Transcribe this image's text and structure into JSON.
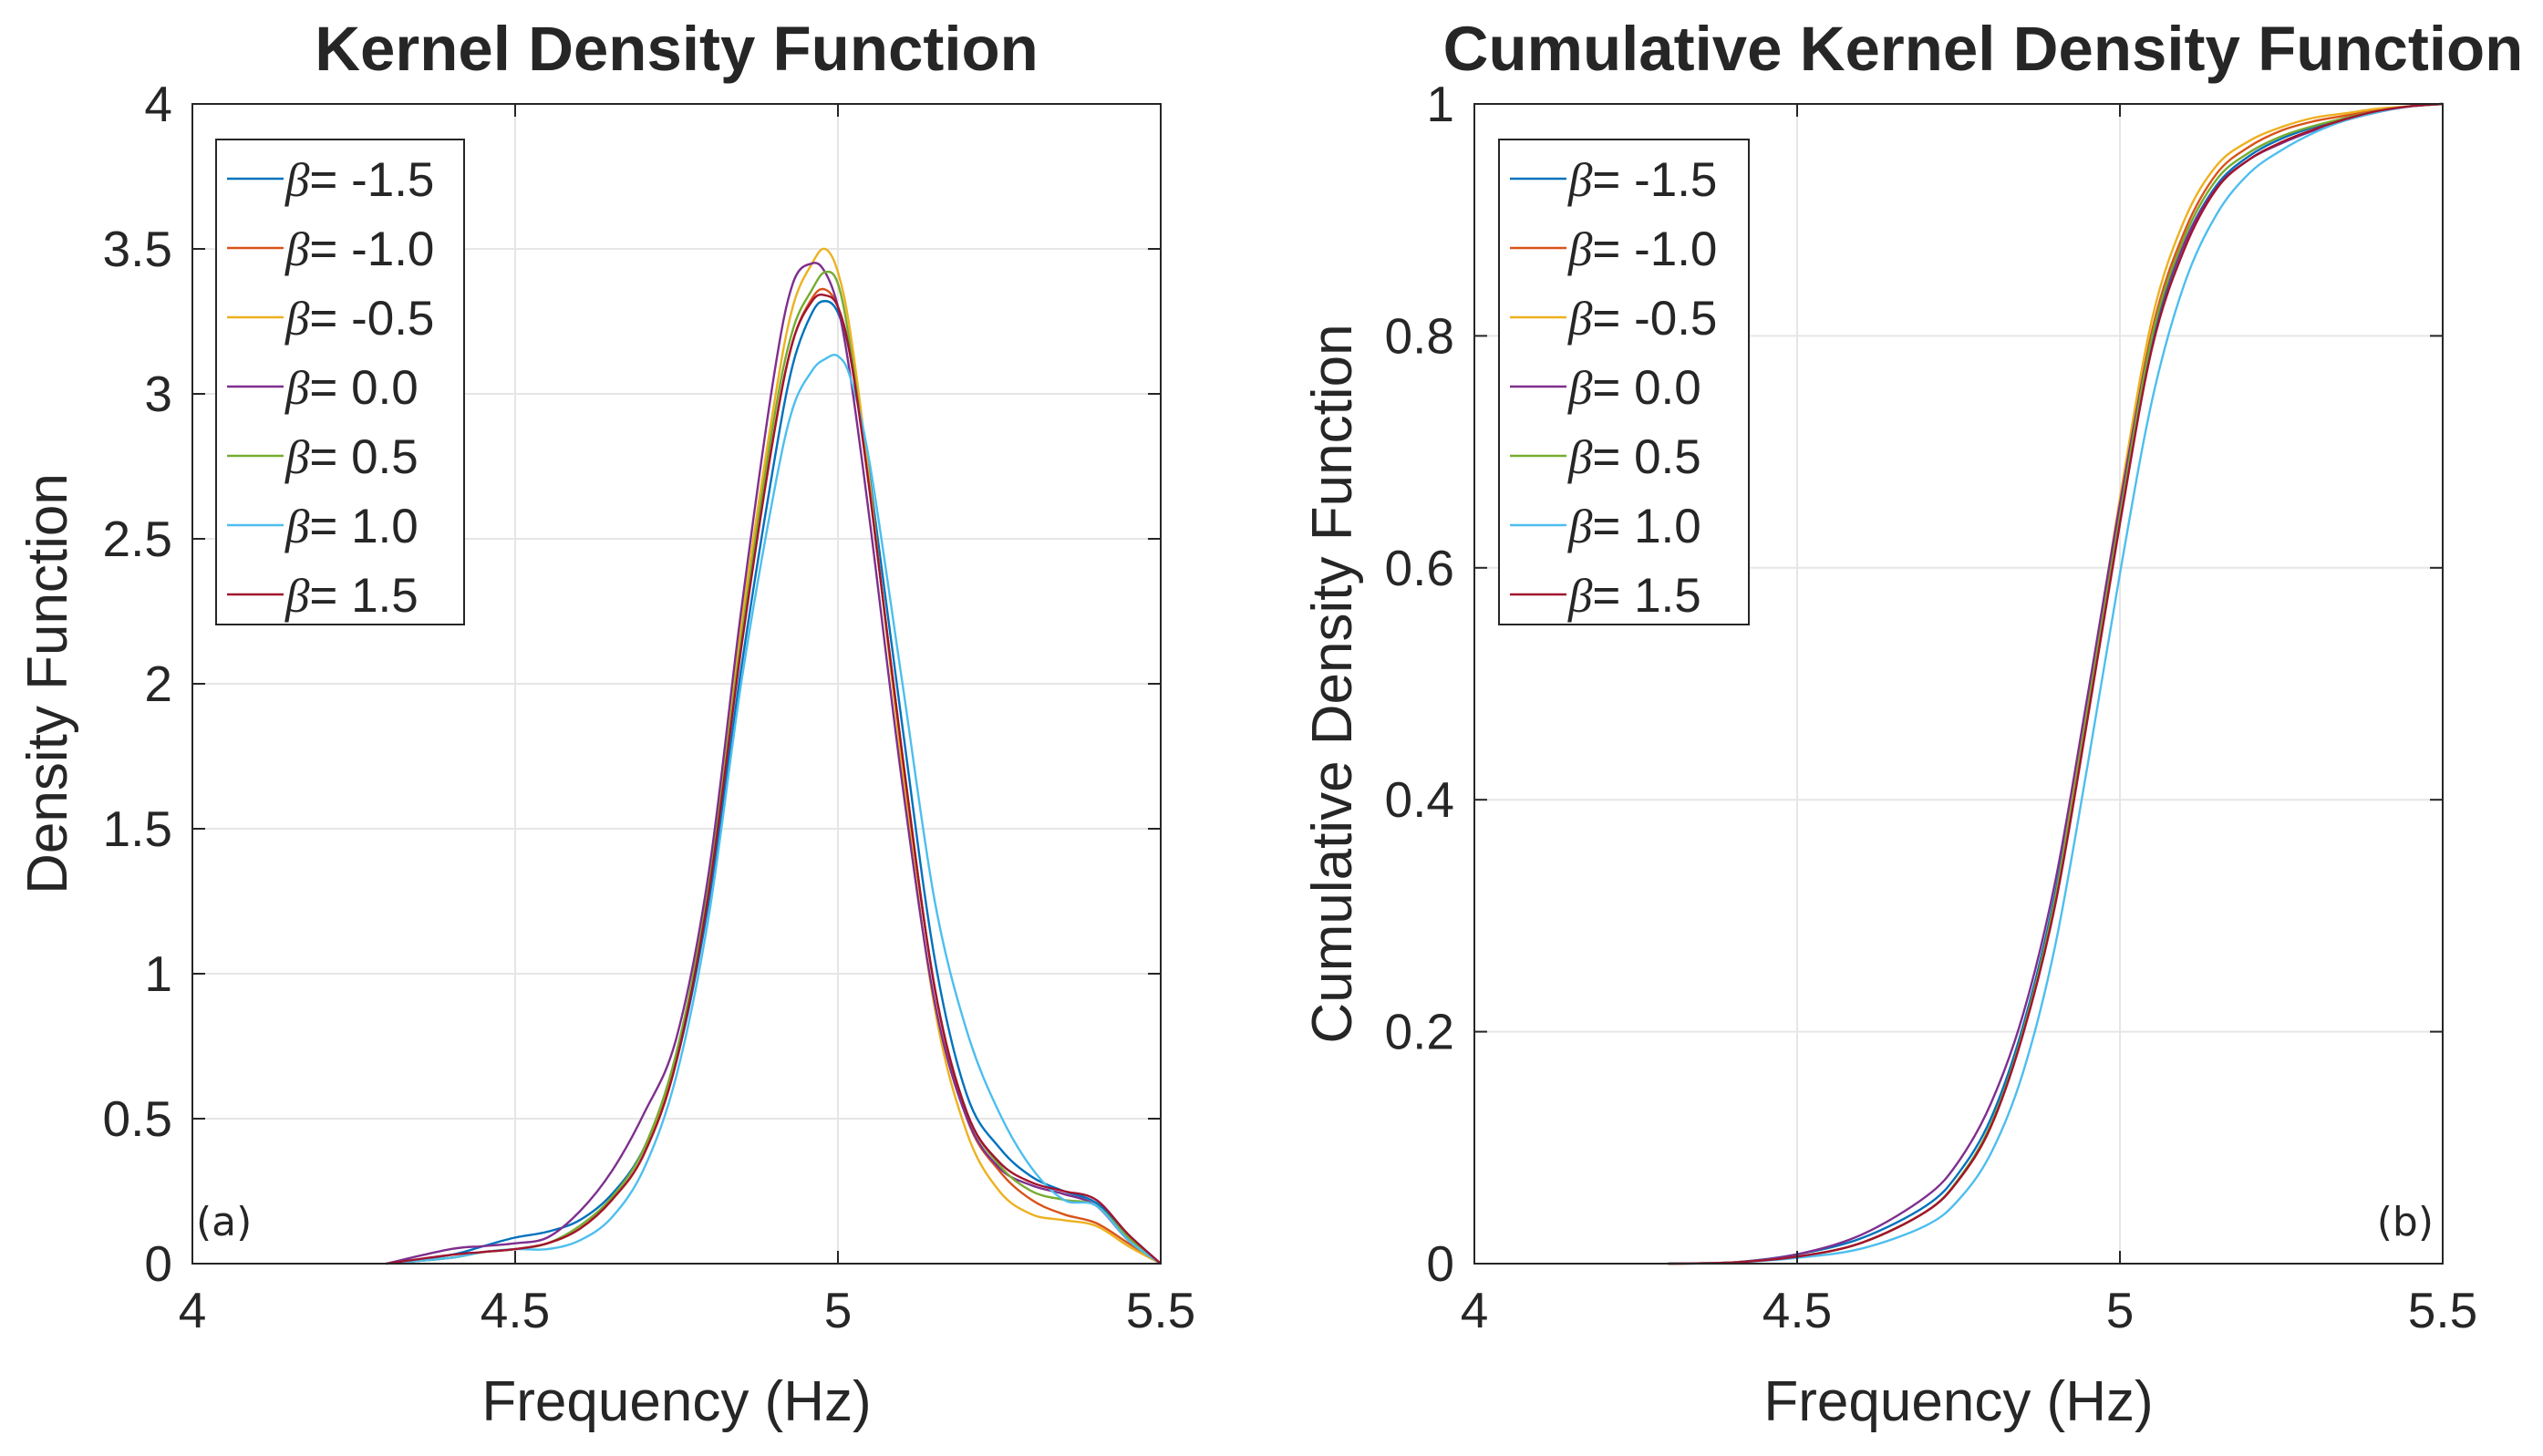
{
  "chart_data": [
    {
      "type": "line",
      "title": "Kernel Density Function",
      "xlabel": "Frequency (Hz)",
      "ylabel": "Density Function",
      "xlim": [
        4,
        5.5
      ],
      "ylim": [
        0,
        4
      ],
      "xticks": [
        4,
        4.5,
        5,
        5.5
      ],
      "xtick_labels": [
        "4",
        "4.5",
        "5",
        "5.5"
      ],
      "yticks": [
        0,
        0.5,
        1,
        1.5,
        2,
        2.5,
        3,
        3.5,
        4
      ],
      "ytick_labels": [
        "0",
        "0.5",
        "1",
        "1.5",
        "2",
        "2.5",
        "3",
        "3.5",
        "4"
      ],
      "grid": true,
      "legend_position": "top-left",
      "panel_label": "(a)",
      "panel_label_position": "bottom-left",
      "series": [
        {
          "name": "β= -1.5",
          "symbol": "β",
          "label": "= -1.5",
          "color": "#0072BD",
          "x": [
            4.3,
            4.4,
            4.45,
            4.5,
            4.55,
            4.6,
            4.65,
            4.7,
            4.75,
            4.8,
            4.85,
            4.9,
            4.93,
            4.96,
            4.98,
            5.0,
            5.02,
            5.05,
            5.1,
            5.15,
            5.2,
            5.25,
            5.3,
            5.35,
            5.4,
            5.45,
            5.5
          ],
          "y": [
            0,
            0.03,
            0.06,
            0.09,
            0.11,
            0.15,
            0.24,
            0.4,
            0.7,
            1.25,
            2.05,
            2.75,
            3.1,
            3.28,
            3.32,
            3.28,
            3.12,
            2.7,
            1.85,
            1.05,
            0.58,
            0.4,
            0.3,
            0.25,
            0.21,
            0.1,
            0
          ]
        },
        {
          "name": "β= -1.0",
          "symbol": "β",
          "label": "= -1.0",
          "color": "#D95319",
          "x": [
            4.3,
            4.4,
            4.45,
            4.5,
            4.55,
            4.6,
            4.65,
            4.7,
            4.75,
            4.8,
            4.85,
            4.9,
            4.93,
            4.96,
            4.98,
            5.0,
            5.02,
            5.05,
            5.1,
            5.15,
            5.2,
            5.25,
            5.3,
            5.35,
            5.4,
            5.45,
            5.5
          ],
          "y": [
            0,
            0.02,
            0.04,
            0.05,
            0.07,
            0.12,
            0.22,
            0.38,
            0.7,
            1.3,
            2.15,
            2.85,
            3.18,
            3.33,
            3.36,
            3.3,
            3.12,
            2.65,
            1.75,
            0.95,
            0.5,
            0.32,
            0.22,
            0.17,
            0.14,
            0.07,
            0
          ]
        },
        {
          "name": "β= -0.5",
          "symbol": "β",
          "label": "= -0.5",
          "color": "#EDB120",
          "x": [
            4.3,
            4.4,
            4.45,
            4.5,
            4.55,
            4.6,
            4.65,
            4.7,
            4.75,
            4.8,
            4.85,
            4.9,
            4.93,
            4.96,
            4.98,
            5.0,
            5.02,
            5.05,
            5.1,
            5.15,
            5.2,
            5.25,
            5.3,
            5.35,
            5.4,
            5.45,
            5.5
          ],
          "y": [
            0,
            0.02,
            0.04,
            0.05,
            0.07,
            0.12,
            0.22,
            0.38,
            0.72,
            1.32,
            2.2,
            2.95,
            3.3,
            3.45,
            3.5,
            3.42,
            3.2,
            2.68,
            1.7,
            0.88,
            0.45,
            0.25,
            0.17,
            0.15,
            0.13,
            0.06,
            0
          ]
        },
        {
          "name": "β= 0.0",
          "symbol": "β",
          "label": "= 0.0",
          "color": "#7E2F8E",
          "x": [
            4.3,
            4.4,
            4.45,
            4.5,
            4.55,
            4.6,
            4.65,
            4.7,
            4.75,
            4.8,
            4.85,
            4.9,
            4.93,
            4.96,
            4.98,
            5.0,
            5.02,
            5.05,
            5.1,
            5.15,
            5.2,
            5.25,
            5.3,
            5.35,
            5.4,
            5.45,
            5.5
          ],
          "y": [
            0,
            0.05,
            0.06,
            0.07,
            0.09,
            0.18,
            0.32,
            0.52,
            0.78,
            1.35,
            2.25,
            3.05,
            3.38,
            3.45,
            3.42,
            3.3,
            3.05,
            2.55,
            1.65,
            0.9,
            0.5,
            0.33,
            0.27,
            0.24,
            0.2,
            0.08,
            0
          ]
        },
        {
          "name": "β= 0.5",
          "symbol": "β",
          "label": "= 0.5",
          "color": "#77AC30",
          "x": [
            4.3,
            4.4,
            4.45,
            4.5,
            4.55,
            4.6,
            4.65,
            4.7,
            4.75,
            4.8,
            4.85,
            4.9,
            4.93,
            4.96,
            4.98,
            5.0,
            5.02,
            5.05,
            5.1,
            5.15,
            5.2,
            5.25,
            5.3,
            5.35,
            5.4,
            5.45,
            5.5
          ],
          "y": [
            0,
            0.02,
            0.04,
            0.05,
            0.07,
            0.13,
            0.23,
            0.4,
            0.73,
            1.3,
            2.15,
            2.9,
            3.22,
            3.36,
            3.42,
            3.38,
            3.15,
            2.65,
            1.75,
            0.95,
            0.52,
            0.34,
            0.25,
            0.22,
            0.2,
            0.09,
            0
          ]
        },
        {
          "name": "β= 1.0",
          "symbol": "β",
          "label": "= 1.0",
          "color": "#4DBEEE",
          "x": [
            4.3,
            4.4,
            4.45,
            4.5,
            4.55,
            4.6,
            4.65,
            4.7,
            4.75,
            4.8,
            4.85,
            4.9,
            4.93,
            4.96,
            4.98,
            5.0,
            5.02,
            5.05,
            5.1,
            5.15,
            5.2,
            5.25,
            5.3,
            5.35,
            5.4,
            5.45,
            5.5
          ],
          "y": [
            0,
            0.02,
            0.04,
            0.05,
            0.05,
            0.08,
            0.16,
            0.33,
            0.65,
            1.2,
            2.0,
            2.65,
            2.95,
            3.08,
            3.12,
            3.13,
            3.05,
            2.75,
            2.0,
            1.25,
            0.8,
            0.52,
            0.33,
            0.22,
            0.2,
            0.08,
            0
          ]
        },
        {
          "name": "β= 1.5",
          "symbol": "β",
          "label": "= 1.5",
          "color": "#A2142F",
          "x": [
            4.3,
            4.4,
            4.45,
            4.5,
            4.55,
            4.6,
            4.65,
            4.7,
            4.75,
            4.8,
            4.85,
            4.9,
            4.93,
            4.96,
            4.98,
            5.0,
            5.02,
            5.05,
            5.1,
            5.15,
            5.2,
            5.25,
            5.3,
            5.35,
            5.4,
            5.45,
            5.5
          ],
          "y": [
            0,
            0.03,
            0.04,
            0.05,
            0.07,
            0.12,
            0.22,
            0.38,
            0.7,
            1.28,
            2.12,
            2.85,
            3.18,
            3.32,
            3.34,
            3.3,
            3.12,
            2.65,
            1.75,
            0.95,
            0.52,
            0.35,
            0.28,
            0.25,
            0.22,
            0.1,
            0
          ]
        }
      ]
    },
    {
      "type": "line",
      "title": "Cumulative Kernel Density Function",
      "xlabel": "Frequency (Hz)",
      "ylabel": "Cumulative Density Function",
      "xlim": [
        4,
        5.5
      ],
      "ylim": [
        0,
        1
      ],
      "xticks": [
        4,
        4.5,
        5,
        5.5
      ],
      "xtick_labels": [
        "4",
        "4.5",
        "5",
        "5.5"
      ],
      "yticks": [
        0,
        0.2,
        0.4,
        0.6,
        0.8,
        1
      ],
      "ytick_labels": [
        "0",
        "0.2",
        "0.4",
        "0.6",
        "0.8",
        "1"
      ],
      "grid": true,
      "legend_position": "top-left",
      "panel_label": "(b)",
      "panel_label_position": "bottom-right",
      "series": [
        {
          "name": "β= -1.5",
          "symbol": "β",
          "label": "= -1.5",
          "color": "#0072BD",
          "x": [
            4.3,
            4.4,
            4.5,
            4.6,
            4.7,
            4.75,
            4.8,
            4.85,
            4.9,
            4.95,
            5.0,
            5.05,
            5.1,
            5.15,
            5.2,
            5.25,
            5.3,
            5.35,
            5.4,
            5.45,
            5.5
          ],
          "y": [
            0,
            0.001,
            0.008,
            0.022,
            0.05,
            0.078,
            0.125,
            0.205,
            0.32,
            0.48,
            0.645,
            0.795,
            0.88,
            0.93,
            0.955,
            0.97,
            0.98,
            0.988,
            0.995,
            0.998,
            1
          ]
        },
        {
          "name": "β= -1.0",
          "symbol": "β",
          "label": "= -1.0",
          "color": "#D95319",
          "x": [
            4.3,
            4.4,
            4.5,
            4.6,
            4.7,
            4.75,
            4.8,
            4.85,
            4.9,
            4.95,
            5.0,
            5.05,
            5.1,
            5.15,
            5.2,
            5.25,
            5.3,
            5.35,
            5.4,
            5.45,
            5.5
          ],
          "y": [
            0,
            0.001,
            0.006,
            0.018,
            0.045,
            0.072,
            0.118,
            0.2,
            0.315,
            0.48,
            0.65,
            0.805,
            0.89,
            0.94,
            0.963,
            0.977,
            0.985,
            0.99,
            0.995,
            0.998,
            1
          ]
        },
        {
          "name": "β= -0.5",
          "symbol": "β",
          "label": "= -0.5",
          "color": "#EDB120",
          "x": [
            4.3,
            4.4,
            4.5,
            4.6,
            4.7,
            4.75,
            4.8,
            4.85,
            4.9,
            4.95,
            5.0,
            5.05,
            5.1,
            5.15,
            5.2,
            5.25,
            5.3,
            5.35,
            5.4,
            5.45,
            5.5
          ],
          "y": [
            0,
            0.001,
            0.006,
            0.018,
            0.045,
            0.072,
            0.118,
            0.2,
            0.315,
            0.485,
            0.66,
            0.815,
            0.9,
            0.947,
            0.968,
            0.98,
            0.988,
            0.992,
            0.996,
            0.998,
            1
          ]
        },
        {
          "name": "β= 0.0",
          "symbol": "β",
          "label": "= 0.0",
          "color": "#7E2F8E",
          "x": [
            4.3,
            4.4,
            4.5,
            4.6,
            4.7,
            4.75,
            4.8,
            4.85,
            4.9,
            4.95,
            5.0,
            5.05,
            5.1,
            5.15,
            5.2,
            5.25,
            5.3,
            5.35,
            5.4,
            5.45,
            5.5
          ],
          "y": [
            0,
            0.001,
            0.008,
            0.025,
            0.058,
            0.088,
            0.138,
            0.215,
            0.33,
            0.49,
            0.655,
            0.8,
            0.88,
            0.928,
            0.952,
            0.966,
            0.977,
            0.986,
            0.993,
            0.998,
            1
          ]
        },
        {
          "name": "β= 0.5",
          "symbol": "β",
          "label": "= 0.5",
          "color": "#77AC30",
          "x": [
            4.3,
            4.4,
            4.5,
            4.6,
            4.7,
            4.75,
            4.8,
            4.85,
            4.9,
            4.95,
            5.0,
            5.05,
            5.1,
            5.15,
            5.2,
            5.25,
            5.3,
            5.35,
            5.4,
            5.45,
            5.5
          ],
          "y": [
            0,
            0.001,
            0.006,
            0.018,
            0.045,
            0.073,
            0.12,
            0.2,
            0.315,
            0.478,
            0.645,
            0.8,
            0.885,
            0.935,
            0.958,
            0.972,
            0.981,
            0.988,
            0.994,
            0.998,
            1
          ]
        },
        {
          "name": "β= 1.0",
          "symbol": "β",
          "label": "= 1.0",
          "color": "#4DBEEE",
          "x": [
            4.3,
            4.4,
            4.5,
            4.6,
            4.7,
            4.75,
            4.8,
            4.85,
            4.9,
            4.95,
            5.0,
            5.05,
            5.1,
            5.15,
            5.2,
            5.25,
            5.3,
            5.35,
            5.4,
            5.45,
            5.5
          ],
          "y": [
            0,
            0.001,
            0.005,
            0.013,
            0.033,
            0.055,
            0.095,
            0.165,
            0.275,
            0.43,
            0.595,
            0.745,
            0.845,
            0.905,
            0.94,
            0.96,
            0.975,
            0.986,
            0.993,
            0.998,
            1
          ]
        },
        {
          "name": "β= 1.5",
          "symbol": "β",
          "label": "= 1.5",
          "color": "#A2142F",
          "x": [
            4.3,
            4.4,
            4.5,
            4.6,
            4.7,
            4.75,
            4.8,
            4.85,
            4.9,
            4.95,
            5.0,
            5.05,
            5.1,
            5.15,
            5.2,
            5.25,
            5.3,
            5.35,
            5.4,
            5.45,
            5.5
          ],
          "y": [
            0,
            0.001,
            0.006,
            0.018,
            0.045,
            0.072,
            0.118,
            0.198,
            0.31,
            0.47,
            0.638,
            0.79,
            0.875,
            0.927,
            0.952,
            0.967,
            0.978,
            0.987,
            0.994,
            0.998,
            1
          ]
        }
      ]
    }
  ]
}
